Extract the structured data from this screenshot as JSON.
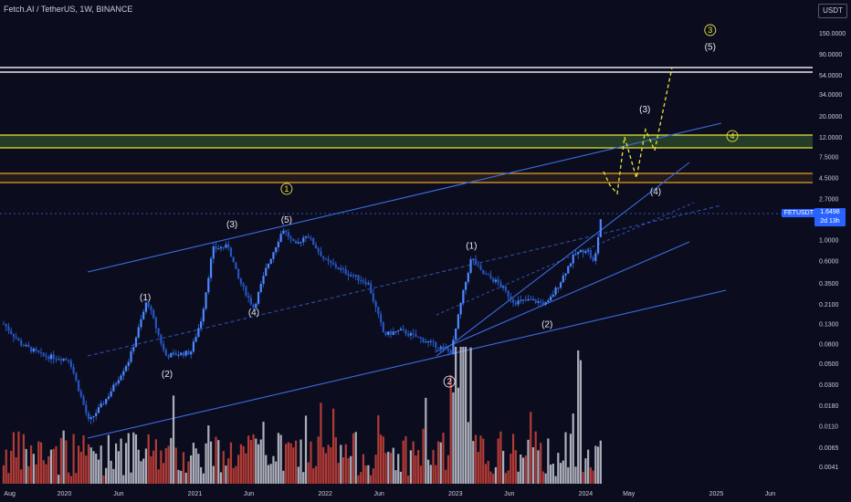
{
  "header": {
    "symbol_title": "Fetch.AI / TetherUS, 1W, BINANCE",
    "currency": "USDT"
  },
  "price_tag": {
    "symbol": "FETUSDT",
    "price": "1.6498",
    "countdown": "2d 13h"
  },
  "colors": {
    "background": "#0b0d1f",
    "up_candle": "#2d6ae0",
    "down_candle": "#2d6ae0",
    "volume_up": "#c9ccd6",
    "volume_down": "#d0443b",
    "trend": "#3d6be0",
    "projection": "#e8e43a",
    "level_green": "#2c4a28",
    "level_yellow": "#e8e43a",
    "level_orange": "#e8a02a",
    "level_white": "#e8e8ee"
  },
  "chart_data": {
    "type": "candlestick",
    "symbol": "FETUSDT",
    "interval": "1W",
    "exchange": "BINANCE",
    "scale": "log",
    "y_ticks": [
      "150.0000",
      "90.0000",
      "54.0000",
      "34.0000",
      "20.0000",
      "12.0000",
      "7.5000",
      "4.5000",
      "2.7000",
      "1.6498",
      "1.0000",
      "0.6000",
      "0.3500",
      "0.2100",
      "0.1300",
      "0.0800",
      "0.0500",
      "0.0300",
      "0.0180",
      "0.0110",
      "0.0065",
      "0.0041"
    ],
    "x_ticks": [
      "Aug",
      "2020",
      "Jun",
      "2021",
      "Jun",
      "2022",
      "Jun",
      "2023",
      "Jun",
      "2024",
      "May",
      "2025",
      "Jun"
    ],
    "last_price": 1.6498,
    "wave_labels": [
      {
        "label": "(1)",
        "date": "2020-08",
        "price": 0.23
      },
      {
        "label": "(2)",
        "date": "2020-10",
        "price": 0.036
      },
      {
        "label": "(3)",
        "date": "2021-04",
        "price": 1.35
      },
      {
        "label": "(4)",
        "date": "2021-06",
        "price": 0.16
      },
      {
        "label": "(5)",
        "date": "2021-09",
        "price": 1.5
      },
      {
        "label": "1",
        "date": "2021-09",
        "price": 3.2
      },
      {
        "label": "(1)",
        "date": "2023-02",
        "price": 0.8
      },
      {
        "label": "2",
        "date": "2022-12",
        "price": 0.03
      },
      {
        "label": "(2)",
        "date": "2023-09",
        "price": 0.12
      },
      {
        "label": "(3)",
        "date": "2024-06",
        "price": 22
      },
      {
        "label": "(4)",
        "date": "2024-07",
        "price": 3.0
      },
      {
        "label": "(5)",
        "date": "2024-12",
        "price": 100
      },
      {
        "label": "3",
        "date": "2024-12",
        "price": 150
      },
      {
        "label": "4",
        "date": "2025-02",
        "price": 11.5
      }
    ],
    "horizontal_levels": [
      {
        "price": 54,
        "color": "white"
      },
      {
        "price": 50,
        "color": "white"
      },
      {
        "price": 10.5,
        "color": "yellow"
      },
      {
        "price": 7.8,
        "color": "yellow"
      },
      {
        "price": 4.5,
        "color": "orange"
      },
      {
        "price": 3.7,
        "color": "orange"
      }
    ],
    "projection_path": [
      {
        "date": "2024-04",
        "price": 4.6
      },
      {
        "date": "2024-05",
        "price": 3.0
      },
      {
        "date": "2024-06",
        "price": 9.5
      },
      {
        "date": "2024-07",
        "price": 4.4
      },
      {
        "date": "2024-08",
        "price": 11.5
      },
      {
        "date": "2024-09",
        "price": 7.5
      },
      {
        "date": "2024-12",
        "price": 54
      }
    ]
  }
}
